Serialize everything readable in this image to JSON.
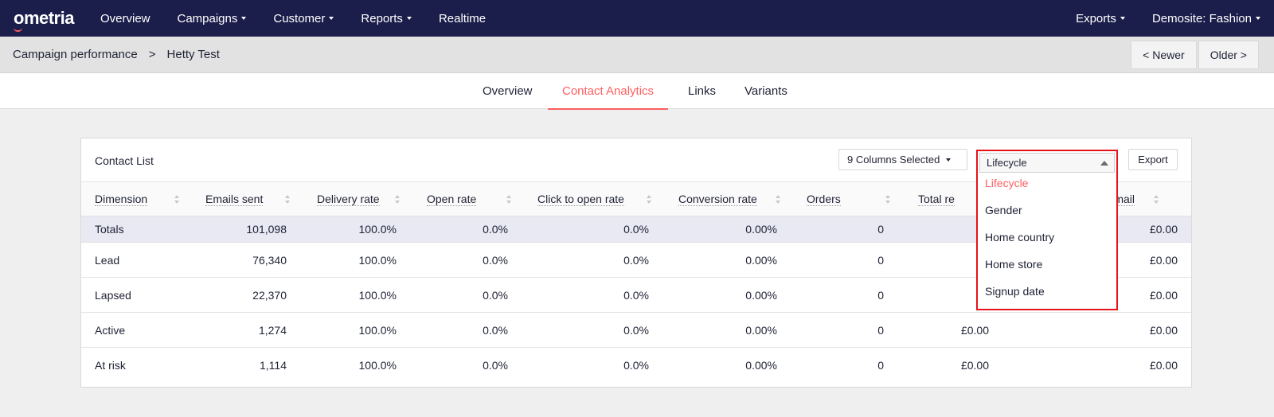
{
  "brand": {
    "logo": "ometria",
    "accent": "#ff5f5f",
    "navy": "#1b1e4b"
  },
  "nav": {
    "items": [
      {
        "label": "Overview",
        "has_caret": false
      },
      {
        "label": "Campaigns",
        "has_caret": true
      },
      {
        "label": "Customer",
        "has_caret": true
      },
      {
        "label": "Reports",
        "has_caret": true
      },
      {
        "label": "Realtime",
        "has_caret": false
      }
    ],
    "right": [
      {
        "label": "Exports",
        "has_caret": true
      },
      {
        "label": "Demosite: Fashion",
        "has_caret": true
      }
    ]
  },
  "breadcrumb": {
    "parent": "Campaign performance",
    "separator": ">",
    "current": "Hetty Test"
  },
  "pager": {
    "newer": "< Newer",
    "older": "Older >"
  },
  "tabs": [
    {
      "label": "Overview",
      "active": false
    },
    {
      "label": "Contact Analytics",
      "active": true
    },
    {
      "label": "Links",
      "active": false
    },
    {
      "label": "Variants",
      "active": false
    }
  ],
  "panel": {
    "title": "Contact List",
    "columns_select": "9 Columns Selected",
    "export": "Export"
  },
  "dimension_dropdown": {
    "selected": "Lifecycle",
    "options": [
      "Lifecycle",
      "Gender",
      "Home country",
      "Home store",
      "Signup date"
    ]
  },
  "table": {
    "headers": [
      "Dimension",
      "Emails sent",
      "Delivery rate",
      "Open rate",
      "Click to open rate",
      "Conversion rate",
      "Orders",
      "Total re",
      "r email"
    ],
    "totals": [
      "Totals",
      "101,098",
      "100.0%",
      "0.0%",
      "0.0%",
      "0.00%",
      "0",
      "",
      "£0.00"
    ],
    "rows": [
      [
        "Lead",
        "76,340",
        "100.0%",
        "0.0%",
        "0.0%",
        "0.00%",
        "0",
        "",
        "£0.00"
      ],
      [
        "Lapsed",
        "22,370",
        "100.0%",
        "0.0%",
        "0.0%",
        "0.00%",
        "0",
        "",
        "£0.00"
      ],
      [
        "Active",
        "1,274",
        "100.0%",
        "0.0%",
        "0.0%",
        "0.00%",
        "0",
        "£0.00",
        "£0.00"
      ],
      [
        "At risk",
        "1,114",
        "100.0%",
        "0.0%",
        "0.0%",
        "0.00%",
        "0",
        "£0.00",
        "£0.00"
      ]
    ]
  }
}
